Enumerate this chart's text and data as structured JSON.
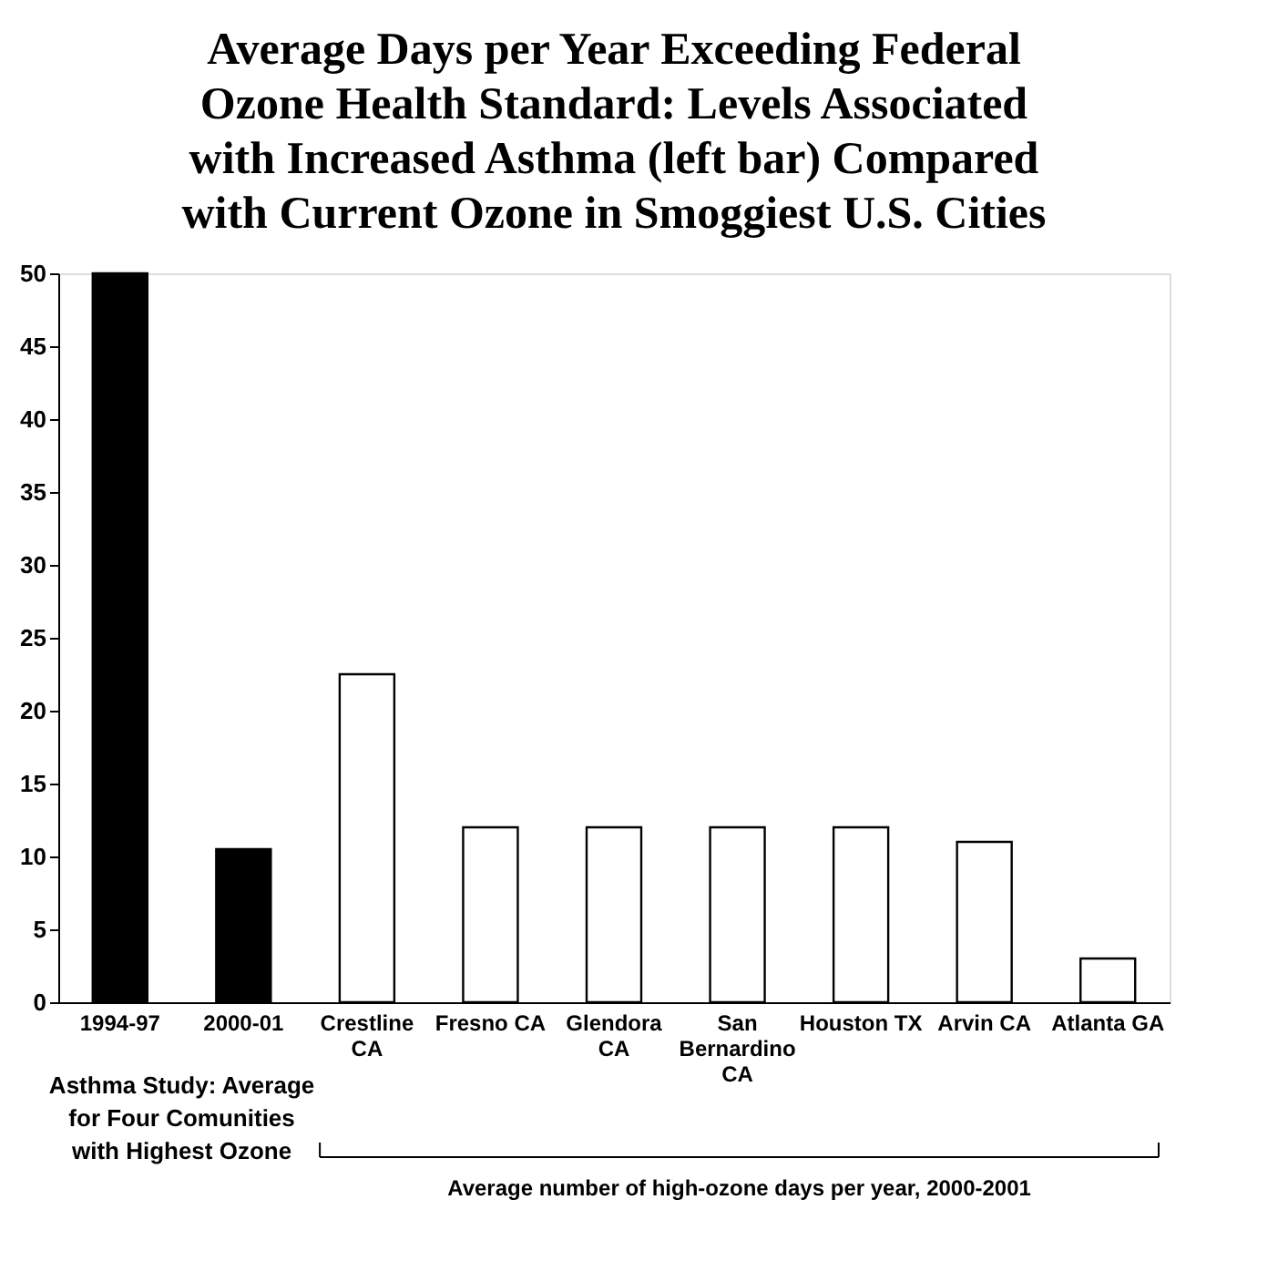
{
  "chart_data": {
    "type": "bar",
    "title": "Average Days per Year Exceeding Federal Ozone Health Standard: Levels Associated with Increased Asthma (left bar) Compared with Current Ozone in Smoggiest U.S. Cities",
    "categories": [
      "1994-97",
      "2000-01",
      "Crestline CA",
      "Fresno CA",
      "Glendora CA",
      "San Bernardino CA",
      "Houston TX",
      "Arvin CA",
      "Atlanta GA"
    ],
    "values": [
      50,
      10.5,
      22.5,
      12,
      12,
      12,
      12,
      11,
      3
    ],
    "colors": [
      "#000000",
      "#000000",
      "#ffffff",
      "#ffffff",
      "#ffffff",
      "#ffffff",
      "#ffffff",
      "#ffffff",
      "#ffffff"
    ],
    "ylim": [
      0,
      50
    ],
    "yticks": [
      0,
      5,
      10,
      15,
      20,
      25,
      30,
      35,
      40,
      45,
      50
    ],
    "grid": false,
    "annotations": [
      "Asthma Study: Average for Four Comunities with Highest Ozone",
      "Average number of high-ozone days per year, 2000-2001"
    ]
  }
}
